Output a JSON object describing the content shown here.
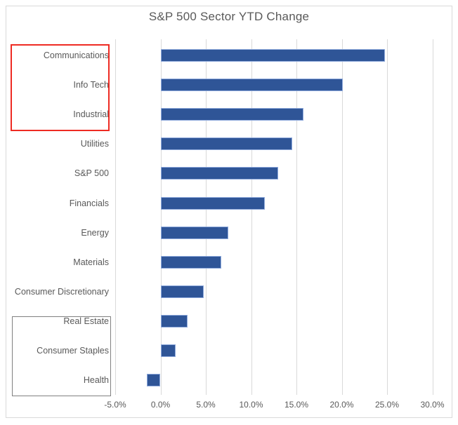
{
  "chart_data": {
    "type": "bar",
    "orientation": "horizontal",
    "title": "S&P 500 Sector YTD Change",
    "categories": [
      "Communications",
      "Info Tech",
      "Industrial",
      "Utilities",
      "S&P 500",
      "Financials",
      "Energy",
      "Materials",
      "Consumer Discretionary",
      "Real Estate",
      "Consumer Staples",
      "Health"
    ],
    "values": [
      24.8,
      20.1,
      15.8,
      14.5,
      13.0,
      11.5,
      7.5,
      6.7,
      4.8,
      3.0,
      1.7,
      -1.5
    ],
    "xlabel": "",
    "ylabel": "",
    "xlim": [
      -5,
      30
    ],
    "xticks": [
      {
        "value": -5,
        "label": "-5.0%"
      },
      {
        "value": 0,
        "label": "0.0%"
      },
      {
        "value": 5,
        "label": "5.0%"
      },
      {
        "value": 10,
        "label": "10.0%"
      },
      {
        "value": 15,
        "label": "15.0%"
      },
      {
        "value": 20,
        "label": "20.0%"
      },
      {
        "value": 25,
        "label": "25.0%"
      },
      {
        "value": 30,
        "label": "30.0%"
      }
    ],
    "grid": true,
    "legend": false,
    "bar_color": "#2F5597",
    "bar_border_color": "#8FAADC"
  },
  "annotations": [
    {
      "name": "red-highlight-box",
      "encloses": [
        "Communications",
        "Info Tech",
        "Industrial"
      ],
      "border_color": "#EE2B23"
    },
    {
      "name": "gray-highlight-box",
      "encloses": [
        "Real Estate",
        "Consumer Staples",
        "Health"
      ],
      "border_color": "#808080"
    }
  ],
  "colors": {
    "background": "#FFFFFF",
    "chart_border": "#D9D9D9",
    "gridline": "#D9D9D9",
    "title_text": "#595959",
    "axis_text": "#595959"
  }
}
